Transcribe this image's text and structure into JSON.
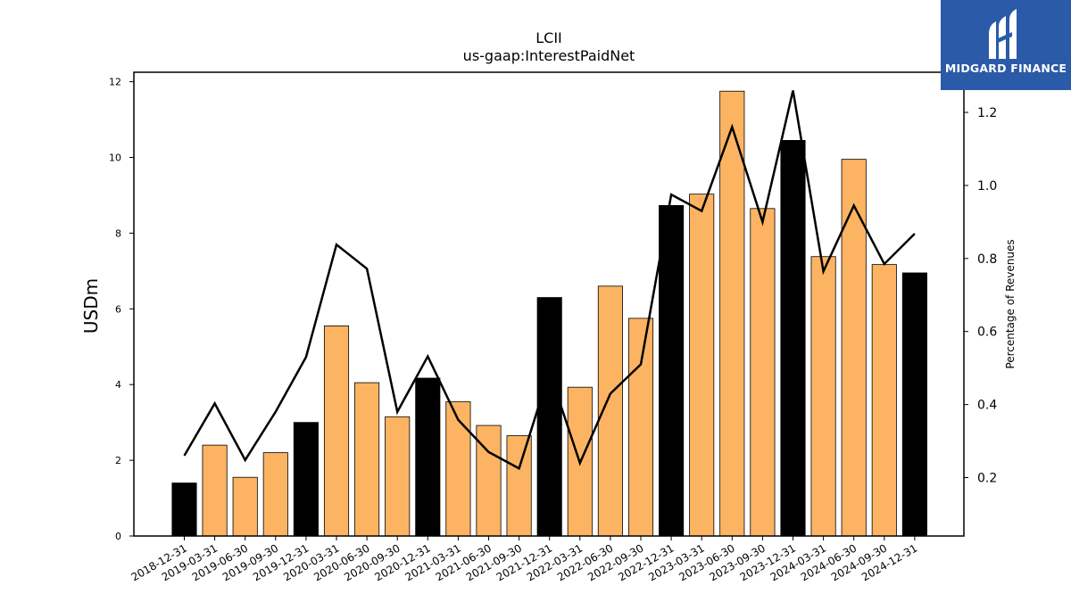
{
  "chart_data": {
    "type": "bar",
    "title": "LCII",
    "subtitle": "us-gaap:InterestPaidNet",
    "ylabel": "USDm",
    "y2label": "Percentage of Revenues",
    "ylim": [
      0,
      12.25
    ],
    "y2lim": [
      0.04,
      1.31
    ],
    "yticks": [
      0,
      2,
      4,
      6,
      8,
      10,
      12
    ],
    "y2ticks": [
      0.2,
      0.4,
      0.6,
      0.8,
      1.0,
      1.2
    ],
    "categories": [
      "2018-12-31",
      "2019-03-31",
      "2019-06-30",
      "2019-09-30",
      "2019-12-31",
      "2020-03-31",
      "2020-06-30",
      "2020-09-30",
      "2020-12-31",
      "2021-03-31",
      "2021-06-30",
      "2021-09-30",
      "2021-12-31",
      "2022-03-31",
      "2022-06-30",
      "2022-09-30",
      "2022-12-31",
      "2023-03-31",
      "2023-06-30",
      "2023-09-30",
      "2023-12-31",
      "2024-03-31",
      "2024-06-30",
      "2024-09-30",
      "2024-12-31"
    ],
    "values": [
      1.4,
      2.4,
      1.55,
      2.2,
      3.0,
      5.55,
      4.05,
      3.15,
      4.17,
      3.55,
      2.92,
      2.65,
      6.3,
      3.93,
      6.6,
      5.75,
      8.73,
      9.03,
      11.75,
      8.65,
      10.45,
      7.38,
      9.95,
      7.17,
      6.95
    ],
    "annual_flags": [
      true,
      false,
      false,
      false,
      true,
      false,
      false,
      false,
      true,
      false,
      false,
      false,
      true,
      false,
      false,
      false,
      true,
      false,
      false,
      false,
      true,
      false,
      false,
      false,
      true
    ],
    "percentage_of_revenues": [
      0.26,
      0.403,
      0.248,
      0.38,
      0.53,
      0.838,
      0.772,
      0.38,
      0.532,
      0.358,
      0.27,
      0.225,
      0.49,
      0.24,
      0.43,
      0.51,
      0.975,
      0.93,
      1.16,
      0.9,
      1.26,
      0.765,
      0.945,
      0.785,
      0.868
    ],
    "colors": {
      "quarter_bar": "#FDB462",
      "annual_bar": "#000000",
      "line": "#000000"
    }
  },
  "logo": {
    "text": "MIDGARD FINANCE",
    "background": "#2B5AA8"
  }
}
